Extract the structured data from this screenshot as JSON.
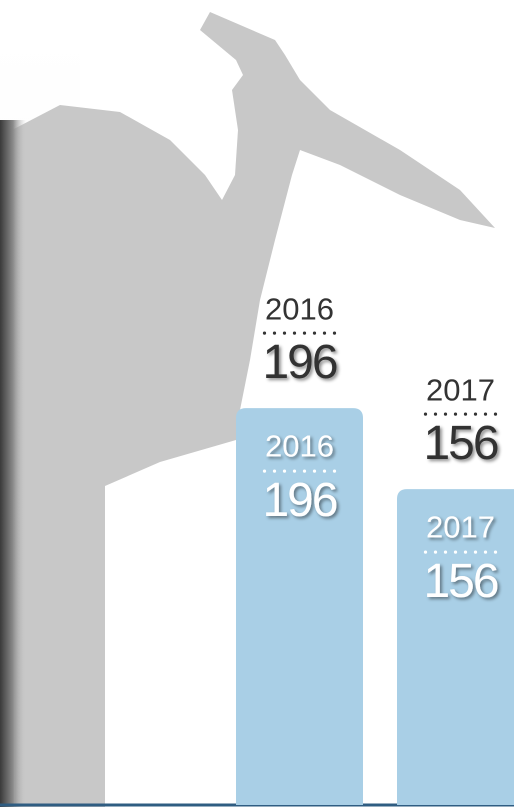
{
  "chart_data": {
    "type": "bar",
    "categories": [
      "2016",
      "2017"
    ],
    "values": [
      196,
      156
    ],
    "color": "#a9cfe6"
  }
}
